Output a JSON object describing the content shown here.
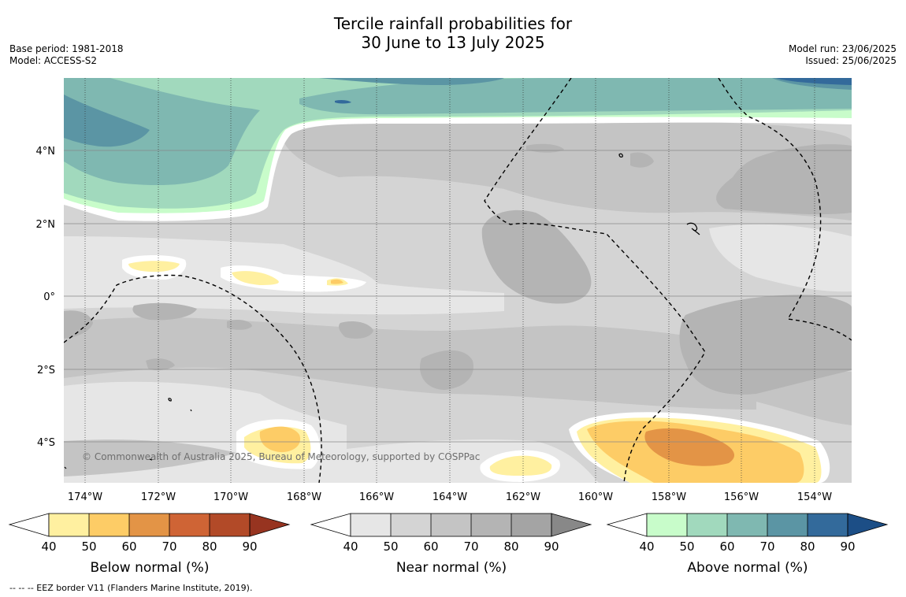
{
  "title": {
    "line1": "Tercile rainfall probabilities for",
    "line2": "30 June to 13 July 2025"
  },
  "meta_left": {
    "base_period": "Base period: 1981-2018",
    "model": "Model: ACCESS-S2"
  },
  "meta_right": {
    "model_run": "Model run: 23/06/2025",
    "issued": "Issued: 25/06/2025"
  },
  "map": {
    "lon_labels": [
      "174°W",
      "172°W",
      "170°W",
      "168°W",
      "166°W",
      "164°W",
      "162°W",
      "160°W",
      "158°W",
      "156°W",
      "154°W"
    ],
    "lat_labels": [
      "4°N",
      "2°N",
      "0°",
      "2°S",
      "4°S"
    ],
    "copyright": "© Commonwealth of Australia 2025, Bureau of Meteorology, supported by COSPPac"
  },
  "legends": [
    {
      "title": "Below normal (%)",
      "ticks": [
        "40",
        "50",
        "60",
        "70",
        "80",
        "90"
      ],
      "colors": [
        "#fff0a0",
        "#fdcc66",
        "#e39446",
        "#cf6435",
        "#b24a28"
      ],
      "extend_color": "#973420"
    },
    {
      "title": "Near normal (%)",
      "ticks": [
        "40",
        "50",
        "60",
        "70",
        "80",
        "90"
      ],
      "colors": [
        "#e6e6e6",
        "#d4d4d4",
        "#c4c4c4",
        "#b4b4b4",
        "#a4a4a4"
      ],
      "extend_color": "#888888"
    },
    {
      "title": "Above normal (%)",
      "ticks": [
        "40",
        "50",
        "60",
        "70",
        "80",
        "90"
      ],
      "colors": [
        "#c8fcca",
        "#a1d9bd",
        "#7fb8b1",
        "#5b95a4",
        "#336a9b"
      ],
      "extend_color": "#1c4e86"
    }
  ],
  "footnote": "--  --  -- EEZ border V11 (Flanders Marine Institute, 2019)."
}
